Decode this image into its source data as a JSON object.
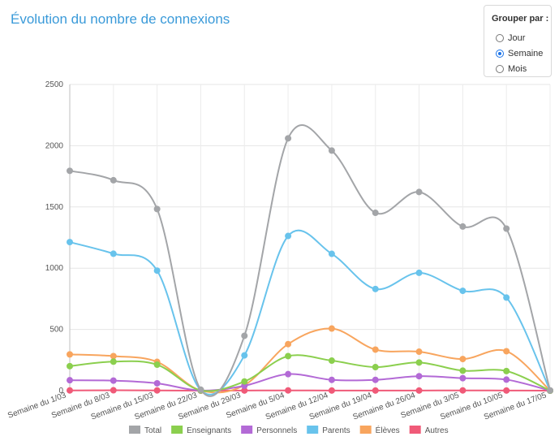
{
  "page": {
    "title": "Évolution du nombre de connexions"
  },
  "grouping": {
    "title": "Grouper par :",
    "options": [
      {
        "label": "Jour",
        "checked": false
      },
      {
        "label": "Semaine",
        "checked": true
      },
      {
        "label": "Mois",
        "checked": false
      }
    ]
  },
  "chart_data": {
    "type": "line",
    "title": "",
    "xlabel": "",
    "ylabel": "",
    "ylim": [
      0,
      2500
    ],
    "yticks": [
      0,
      500,
      1000,
      1500,
      2000,
      2500
    ],
    "grid": true,
    "legend_position": "bottom",
    "categories": [
      "Semaine du 1/03",
      "Semaine du 8/03",
      "Semaine du 15/03",
      "Semaine du 22/03",
      "Semaine du 29/03",
      "Semaine du 5/04",
      "Semaine du 12/04",
      "Semaine du 19/04",
      "Semaine du 26/04",
      "Semaine du 3/05",
      "Semaine du 10/05",
      "Semaine du 17/05"
    ],
    "series": [
      {
        "name": "Total",
        "color": "#a3a5a8",
        "values": [
          1795,
          1718,
          1483,
          8,
          448,
          2060,
          1960,
          1452,
          1622,
          1340,
          1323,
          2
        ]
      },
      {
        "name": "Enseignants",
        "color": "#8bcf4e",
        "values": [
          200,
          237,
          212,
          2,
          75,
          282,
          245,
          192,
          230,
          163,
          160,
          0
        ]
      },
      {
        "name": "Personnels",
        "color": "#b36ad6",
        "values": [
          85,
          82,
          60,
          1,
          40,
          135,
          88,
          88,
          118,
          102,
          90,
          0
        ]
      },
      {
        "name": "Parents",
        "color": "#68c3ec",
        "values": [
          1213,
          1118,
          980,
          3,
          288,
          1263,
          1117,
          830,
          962,
          815,
          760,
          1
        ]
      },
      {
        "name": "Élèves",
        "color": "#f8a55e",
        "values": [
          296,
          282,
          235,
          1,
          45,
          380,
          507,
          335,
          318,
          258,
          322,
          1
        ]
      },
      {
        "name": "Autres",
        "color": "#f05a78",
        "values": [
          2,
          3,
          2,
          0,
          1,
          2,
          1,
          1,
          1,
          2,
          1,
          0
        ]
      }
    ]
  }
}
